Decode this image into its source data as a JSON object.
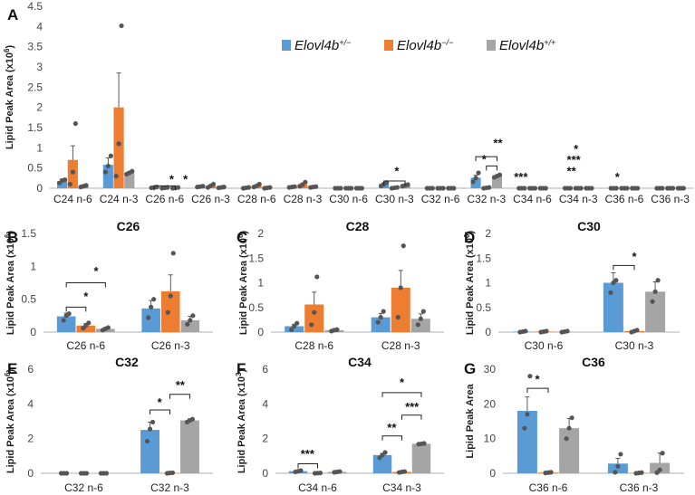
{
  "colors": {
    "het": "#5B9BD5",
    "ko": "#ED7D31",
    "wt": "#A5A5A5",
    "axis": "#b0b0b0",
    "dot": "#555555"
  },
  "legend": [
    {
      "base": "Elovl4b",
      "sup": "+/−",
      "color": "#5B9BD5"
    },
    {
      "base": "Elovl4b",
      "sup": "−/−",
      "color": "#ED7D31"
    },
    {
      "base": "Elovl4b",
      "sup": "+/+",
      "color": "#A5A5A5"
    }
  ],
  "chart_data": [
    {
      "panel": "A",
      "type": "bar",
      "title": "",
      "ylabel": "Lipid Peak Area (x10",
      "ylabel_sup": "6",
      "ylabel_end": ")",
      "ylim": [
        0,
        4.5
      ],
      "yticks": [
        0,
        0.5,
        1,
        1.5,
        2,
        2.5,
        3,
        3.5,
        4,
        4.5
      ],
      "categories": [
        "C24 n-6",
        "C24 n-3",
        "C26 n-6",
        "C26 n-3",
        "C28 n-6",
        "C28 n-3",
        "C30 n-6",
        "C30 n-3",
        "C32 n-6",
        "C32 n-3",
        "C34 n-6",
        "C34 n-3",
        "C36 n-6",
        "C36 n-3"
      ],
      "series": [
        {
          "values": [
            0.17,
            0.58,
            0.02,
            0.04,
            0.01,
            0.03,
            0.0,
            0.1,
            0.0,
            0.26,
            0.0,
            0.0,
            0.0,
            0.0
          ],
          "errors": [
            0.06,
            0.17,
            0.01,
            0.01,
            0.01,
            0.01,
            0.0,
            0.03,
            0.0,
            0.06,
            0.0,
            0.0,
            0.0,
            0.0
          ]
        },
        {
          "values": [
            0.7,
            2.0,
            0.01,
            0.06,
            0.06,
            0.09,
            0.0,
            0.01,
            0.0,
            0.01,
            0.0,
            0.0,
            0.0,
            0.0
          ],
          "errors": [
            0.35,
            0.85,
            0.0,
            0.02,
            0.02,
            0.03,
            0.0,
            0.0,
            0.0,
            0.0,
            0.0,
            0.0,
            0.0,
            0.0
          ]
        },
        {
          "values": [
            0.05,
            0.38,
            0.01,
            0.02,
            0.01,
            0.03,
            0.0,
            0.07,
            0.0,
            0.3,
            0.0,
            0.0,
            0.0,
            0.0
          ],
          "errors": [
            0.02,
            0.03,
            0.0,
            0.01,
            0.0,
            0.01,
            0.0,
            0.02,
            0.0,
            0.02,
            0.0,
            0.0,
            0.0,
            0.0
          ]
        }
      ],
      "points": [
        [
          [
            0.13,
            0.19,
            0.21
          ],
          [
            0.4,
            0.55,
            0.8
          ],
          [
            0.01,
            0.02,
            0.03
          ],
          [
            0.03,
            0.04,
            0.05
          ],
          [
            0,
            0.01,
            0.02
          ],
          [
            0.02,
            0.03,
            0.04
          ],
          [
            0,
            0,
            0
          ],
          [
            0.06,
            0.1,
            0.14
          ],
          [
            0,
            0,
            0
          ],
          [
            0.16,
            0.25,
            0.38
          ],
          [
            0,
            0,
            0
          ],
          [
            0,
            0,
            0
          ],
          [
            0,
            0,
            0
          ],
          [
            0,
            0,
            0
          ]
        ],
        [
          [
            0.1,
            0.4,
            1.6
          ],
          [
            0.3,
            1.1,
            4.02
          ],
          [
            0,
            0.01,
            0.02
          ],
          [
            0.02,
            0.06,
            0.1
          ],
          [
            0.03,
            0.06,
            0.1
          ],
          [
            0.05,
            0.09,
            0.15
          ],
          [
            0,
            0,
            0
          ],
          [
            0,
            0.01,
            0.02
          ],
          [
            0,
            0,
            0
          ],
          [
            0,
            0.01,
            0.02
          ],
          [
            0,
            0,
            0
          ],
          [
            0,
            0,
            0
          ],
          [
            0,
            0,
            0
          ],
          [
            0,
            0,
            0
          ]
        ],
        [
          [
            0.03,
            0.05,
            0.07
          ],
          [
            0.35,
            0.38,
            0.42
          ],
          [
            0,
            0.01,
            0.02
          ],
          [
            0.01,
            0.02,
            0.03
          ],
          [
            0,
            0.01,
            0.02
          ],
          [
            0.02,
            0.03,
            0.04
          ],
          [
            0,
            0,
            0
          ],
          [
            0.05,
            0.07,
            0.09
          ],
          [
            0,
            0,
            0
          ],
          [
            0.27,
            0.3,
            0.33
          ],
          [
            0,
            0,
            0
          ],
          [
            0,
            0,
            0
          ],
          [
            0,
            0,
            0
          ],
          [
            0,
            0,
            0
          ]
        ]
      ],
      "annotations": [
        {
          "label": "*",
          "x": 2.15,
          "y": 0.12
        },
        {
          "label": "*",
          "x": 2.45,
          "y": 0.12
        },
        {
          "label": "*",
          "x": 7.05,
          "y": 0.33
        },
        {
          "label": "*",
          "x": 8.95,
          "y": 0.62
        },
        {
          "label": "**",
          "x": 9.25,
          "y": 1.02
        },
        {
          "label": "***",
          "x": 9.75,
          "y": 0.18
        },
        {
          "label": "*",
          "x": 10.95,
          "y": 0.87
        },
        {
          "label": "***",
          "x": 10.9,
          "y": 0.6
        },
        {
          "label": "**",
          "x": 10.85,
          "y": 0.33
        },
        {
          "label": "*",
          "x": 11.85,
          "y": 0.18
        }
      ]
    },
    {
      "panel": "B",
      "type": "bar",
      "title": "C26",
      "ylabel": "Lipid Peak Area (x10",
      "ylabel_sup": "6",
      "ylabel_end": ")",
      "ylim": [
        0,
        1.5
      ],
      "yticks": [
        0,
        0.5,
        1,
        1.5
      ],
      "categories": [
        "C26 n-6",
        "C26 n-3"
      ],
      "series": [
        {
          "values": [
            0.24,
            0.36
          ],
          "errors": [
            0.05,
            0.12
          ]
        },
        {
          "values": [
            0.1,
            0.62
          ],
          "errors": [
            0.03,
            0.25
          ]
        },
        {
          "values": [
            0.05,
            0.18
          ],
          "errors": [
            0.02,
            0.06
          ]
        }
      ],
      "points": [
        [
          [
            0.18,
            0.25,
            0.28
          ],
          [
            0.22,
            0.38,
            0.5
          ]
        ],
        [
          [
            0.06,
            0.1,
            0.14
          ],
          [
            0.3,
            0.55,
            1.2
          ]
        ],
        [
          [
            0.03,
            0.05,
            0.07
          ],
          [
            0.12,
            0.18,
            0.25
          ]
        ]
      ],
      "annotations": [
        {
          "label": "*",
          "x": 0.0,
          "y": 0.48
        },
        {
          "label": "*",
          "x": 0.12,
          "y": 0.87
        }
      ]
    },
    {
      "panel": "C",
      "type": "bar",
      "title": "C28",
      "ylabel": "Lipid Peak Area (x10",
      "ylabel_sup": "6",
      "ylabel_end": ")",
      "ylim": [
        0,
        2
      ],
      "yticks": [
        0,
        0.5,
        1,
        1.5,
        2
      ],
      "categories": [
        "C28 n-6",
        "C28 n-3"
      ],
      "series": [
        {
          "values": [
            0.12,
            0.3
          ],
          "errors": [
            0.04,
            0.08
          ]
        },
        {
          "values": [
            0.56,
            0.9
          ],
          "errors": [
            0.25,
            0.35
          ]
        },
        {
          "values": [
            0.04,
            0.27
          ],
          "errors": [
            0.01,
            0.1
          ]
        }
      ],
      "points": [
        [
          [
            0.05,
            0.12,
            0.18
          ],
          [
            0.2,
            0.3,
            0.42
          ]
        ],
        [
          [
            0.15,
            0.4,
            1.12
          ],
          [
            0.3,
            0.9,
            1.75
          ]
        ],
        [
          [
            0.02,
            0.04,
            0.05
          ],
          [
            0.15,
            0.27,
            0.42
          ]
        ]
      ],
      "annotations": []
    },
    {
      "panel": "D",
      "type": "bar",
      "title": "C30",
      "ylabel": "Lipid Peak Area (x10",
      "ylabel_sup": "6",
      "ylabel_end": ")",
      "ylim": [
        0,
        2
      ],
      "yticks": [
        0,
        0.5,
        1,
        1.5,
        2
      ],
      "categories": [
        "C30 n-6",
        "C30 n-3"
      ],
      "series": [
        {
          "values": [
            0.01,
            1.0
          ],
          "errors": [
            0.0,
            0.2
          ]
        },
        {
          "values": [
            0.01,
            0.02
          ],
          "errors": [
            0.0,
            0.01
          ]
        },
        {
          "values": [
            0.01,
            0.82
          ],
          "errors": [
            0.0,
            0.2
          ]
        }
      ],
      "points": [
        [
          [
            0,
            0.01,
            0.02
          ],
          [
            0.8,
            1.0,
            1.05
          ]
        ],
        [
          [
            0,
            0.01,
            0.02
          ],
          [
            0,
            0.02,
            0.04
          ]
        ],
        [
          [
            0,
            0.01,
            0.02
          ],
          [
            0.62,
            0.82,
            1.05
          ]
        ]
      ],
      "annotations": [
        {
          "label": "*",
          "x": 1.0,
          "y": 1.45
        }
      ]
    },
    {
      "panel": "E",
      "type": "bar",
      "title": "C32",
      "ylabel": "Lipid Peak Area (x10",
      "ylabel_sup": "6",
      "ylabel_end": ")",
      "ylim": [
        0,
        6
      ],
      "yticks": [
        0,
        2,
        4,
        6
      ],
      "categories": [
        "C32 n-6",
        "C32 n-3"
      ],
      "series": [
        {
          "values": [
            0.0,
            2.5
          ],
          "errors": [
            0.0,
            0.45
          ]
        },
        {
          "values": [
            0.0,
            0.02
          ],
          "errors": [
            0.0,
            0.0
          ]
        },
        {
          "values": [
            0.0,
            3.05
          ],
          "errors": [
            0.0,
            0.08
          ]
        }
      ],
      "points": [
        [
          [
            0,
            0,
            0
          ],
          [
            1.85,
            2.55,
            2.95
          ]
        ],
        [
          [
            0,
            0,
            0
          ],
          [
            0,
            0.02,
            0.03
          ]
        ],
        [
          [
            0,
            0,
            0
          ],
          [
            2.95,
            3.05,
            3.12
          ]
        ]
      ],
      "annotations": [
        {
          "label": "*",
          "x": 0.88,
          "y": 3.85
        },
        {
          "label": "**",
          "x": 1.12,
          "y": 4.85
        }
      ]
    },
    {
      "panel": "F",
      "type": "bar",
      "title": "C34",
      "ylabel": "Lipid Peak Area (x10",
      "ylabel_sup": "3",
      "ylabel_end": ")",
      "ylim": [
        0,
        6
      ],
      "yticks": [
        0,
        2,
        4,
        6
      ],
      "categories": [
        "C34 n-6",
        "C34 n-3"
      ],
      "series": [
        {
          "values": [
            0.12,
            1.05
          ],
          "errors": [
            0.03,
            0.1
          ]
        },
        {
          "values": [
            0.01,
            0.08
          ],
          "errors": [
            0.0,
            0.02
          ]
        },
        {
          "values": [
            0.08,
            1.7
          ],
          "errors": [
            0.01,
            0.03
          ]
        }
      ],
      "points": [
        [
          [
            0.08,
            0.12,
            0.16
          ],
          [
            0.9,
            1.05,
            1.2
          ]
        ],
        [
          [
            0,
            0.01,
            0.02
          ],
          [
            0.05,
            0.08,
            0.1
          ]
        ],
        [
          [
            0.06,
            0.08,
            0.1
          ],
          [
            1.68,
            1.7,
            1.72
          ]
        ]
      ],
      "annotations": [
        {
          "label": "***",
          "x": -0.12,
          "y": 0.9
        },
        {
          "label": "**",
          "x": 0.88,
          "y": 2.4
        },
        {
          "label": "***",
          "x": 1.12,
          "y": 3.6
        },
        {
          "label": "*",
          "x": 1.0,
          "y": 5.0
        }
      ]
    },
    {
      "panel": "G",
      "type": "bar",
      "title": "C36",
      "ylabel": "Lipid Peak Area",
      "ylabel_sup": "",
      "ylabel_end": "",
      "ylim": [
        0,
        30
      ],
      "yticks": [
        0,
        10,
        20,
        30
      ],
      "categories": [
        "C36 n-6",
        "C36 n-3"
      ],
      "series": [
        {
          "values": [
            18.0,
            2.8
          ],
          "errors": [
            4.0,
            1.5
          ]
        },
        {
          "values": [
            0.2,
            0.1
          ],
          "errors": [
            0.0,
            0.0
          ]
        },
        {
          "values": [
            13.0,
            3.0
          ],
          "errors": [
            2.8,
            2.8
          ]
        }
      ],
      "points": [
        [
          [
            13.0,
            17.0,
            28.0
          ],
          [
            0.3,
            2.0,
            5.5
          ]
        ],
        [
          [
            0.1,
            0.2,
            0.3
          ],
          [
            0,
            0.1,
            0.2
          ]
        ],
        [
          [
            10.0,
            13.0,
            16.0
          ],
          [
            0.2,
            1.0,
            5.8
          ]
        ]
      ],
      "annotations": [
        {
          "label": "*",
          "x": -0.12,
          "y": 26.0
        }
      ]
    }
  ]
}
